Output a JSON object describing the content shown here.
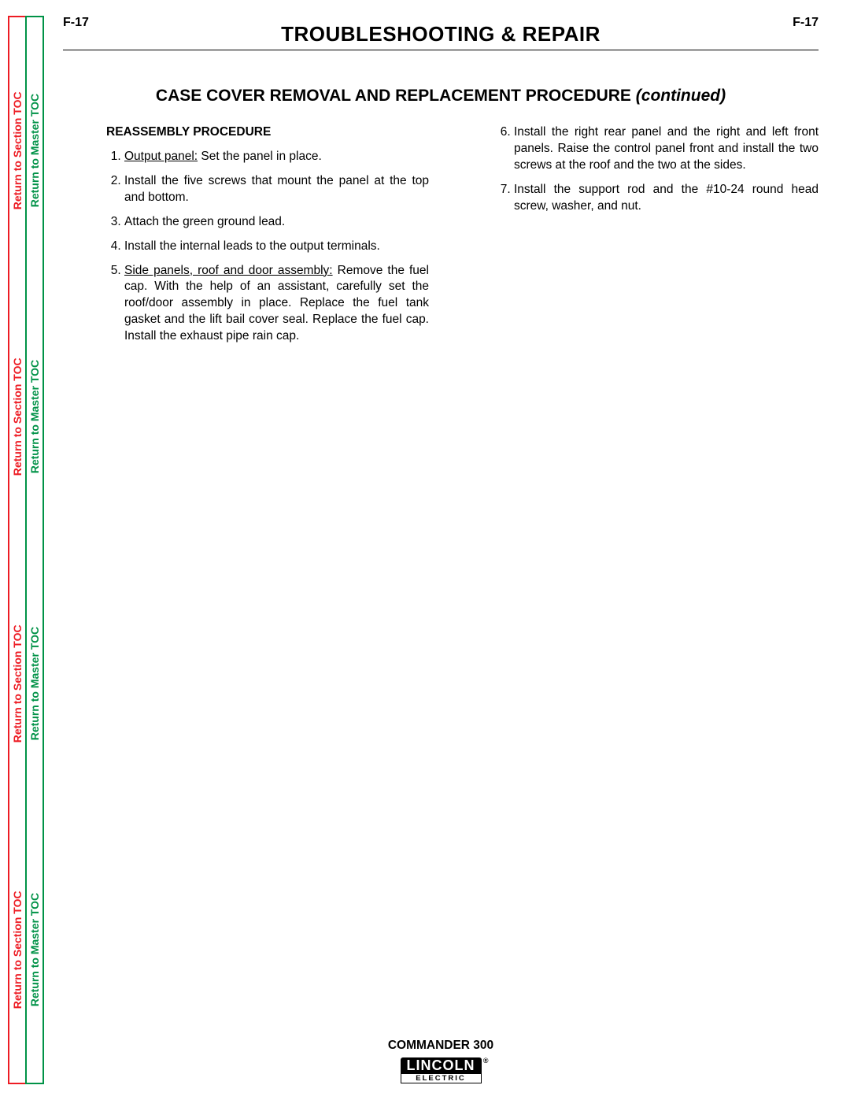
{
  "sideTabs": {
    "sectionLabel": "Return to Section TOC",
    "masterLabel": "Return to Master TOC",
    "sectionColor": "#ed1c24",
    "masterColor": "#009247"
  },
  "pageNumber": "F-17",
  "headerTitle": "TROUBLESHOOTING & REPAIR",
  "sectionTitle": "CASE COVER REMOVAL AND REPLACEMENT PROCEDURE",
  "sectionTitleSuffix": "(continued)",
  "procedureHeading": "REASSEMBLY PROCEDURE",
  "leftSteps": [
    {
      "underlined": "Output panel:",
      "rest": " Set the panel in place."
    },
    {
      "underlined": "",
      "rest": "Install the five screws that mount the panel at the top and bottom."
    },
    {
      "underlined": "",
      "rest": "Attach the green ground lead."
    },
    {
      "underlined": "",
      "rest": "Install the internal leads to the output terminals."
    },
    {
      "underlined": "Side panels, roof and door assembly:",
      "rest": " Remove the fuel cap.  With the help of an assistant, carefully set the roof/door assembly in place. Replace the fuel tank gasket and the lift bail cover seal.  Replace the fuel cap. Install the exhaust pipe rain cap."
    }
  ],
  "rightSteps": [
    {
      "rest": "Install the right rear panel and the right and left front panels.  Raise the control panel front and install the two screws at the roof and the two at the sides."
    },
    {
      "rest": "Install the support rod and the #10-24 round head screw, washer, and nut."
    }
  ],
  "footer": {
    "product": "COMMANDER 300",
    "logoTop": "LINCOLN",
    "logoBottom": "ELECTRIC"
  }
}
